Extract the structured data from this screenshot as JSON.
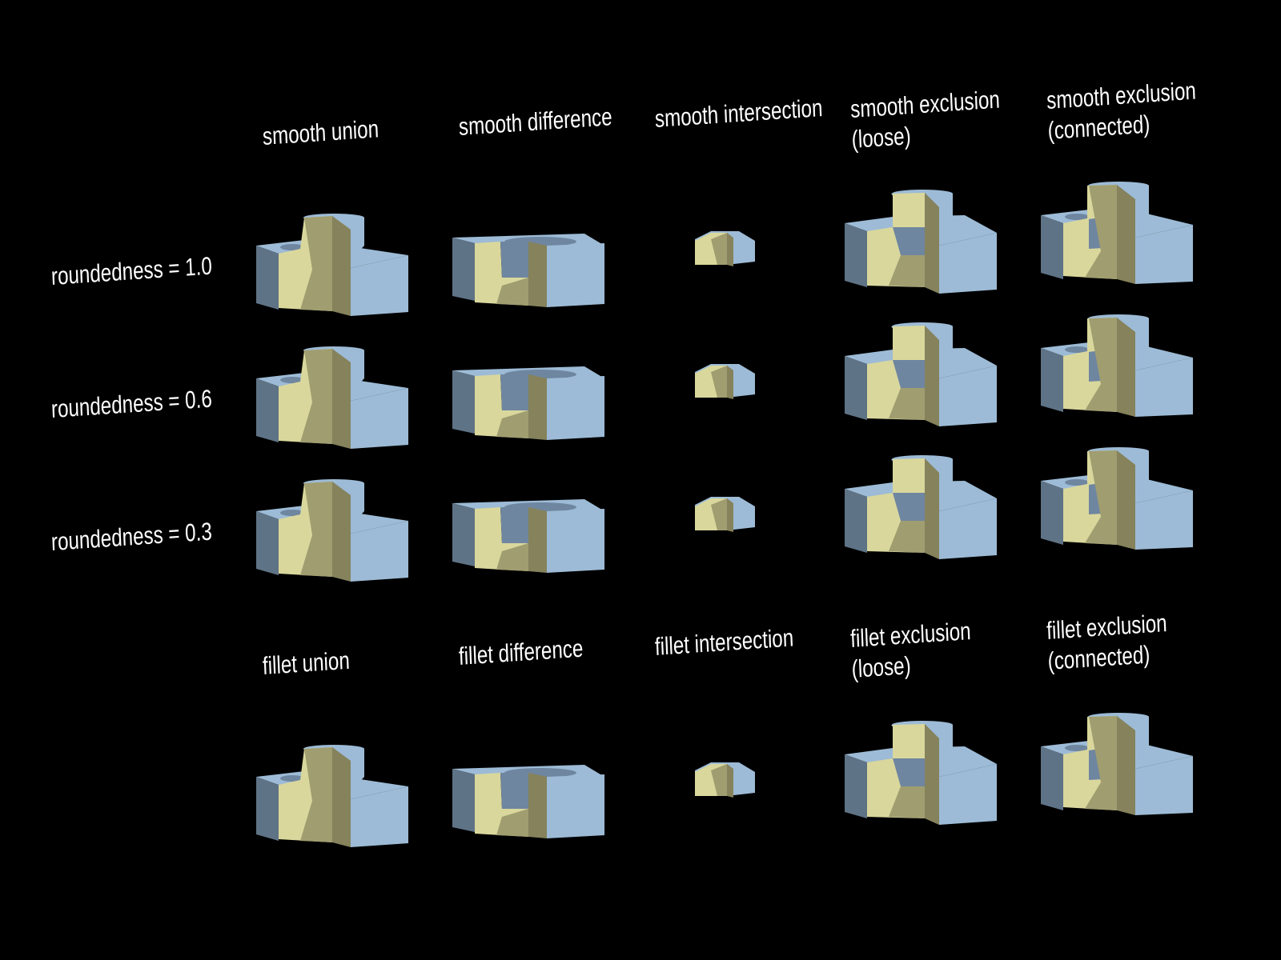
{
  "columns_smooth": [
    {
      "label": "smooth union"
    },
    {
      "label": "smooth difference"
    },
    {
      "label": "smooth intersection"
    },
    {
      "label": "smooth exclusion\n(loose)"
    },
    {
      "label": "smooth exclusion\n(connected)"
    }
  ],
  "columns_fillet": [
    {
      "label": "fillet union"
    },
    {
      "label": "fillet difference"
    },
    {
      "label": "fillet intersection"
    },
    {
      "label": "fillet exclusion\n(loose)"
    },
    {
      "label": "fillet exclusion\n(connected)"
    }
  ],
  "rows": [
    {
      "label": "roundedness = 1.0"
    },
    {
      "label": "roundedness = 0.6"
    },
    {
      "label": "roundedness = 0.3"
    }
  ],
  "colors": {
    "background": "#000000",
    "surface_blue": "#9dbbd6",
    "shadow_blue": "#5f7386",
    "cut_yellow": "#d9d79c",
    "cut_olive": "#a09d70",
    "cut_dark_olive": "#85825c"
  }
}
